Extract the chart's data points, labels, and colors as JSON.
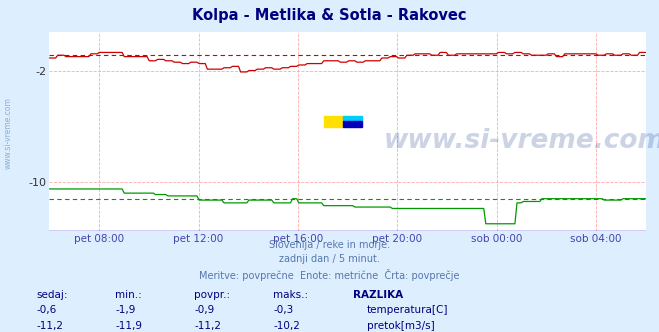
{
  "title": "Kolpa - Metlika & Sotla - Rakovec",
  "title_color": "#000080",
  "bg_color": "#ddeeff",
  "plot_bg_color": "#ffffff",
  "grid_color": "#ffaaaa",
  "grid_style": "--",
  "tick_color": "#4444aa",
  "watermark_text": "www.si-vreme.com",
  "watermark_color": "#1a3a8a",
  "watermark_alpha": 0.22,
  "subtitle_lines": [
    "Slovenija / reke in morje.",
    "zadnji dan / 5 minut.",
    "Meritve: povprečne  Enote: metrične  Črta: povprečje"
  ],
  "subtitle_color": "#5577aa",
  "x_tick_labels": [
    "pet 08:00",
    "pet 12:00",
    "pet 16:00",
    "pet 20:00",
    "sob 00:00",
    "sob 04:00"
  ],
  "ylim": [
    -13.5,
    0.8
  ],
  "y_ticks": [
    -10,
    -2
  ],
  "ytick_labels": [
    "-10",
    "-2"
  ],
  "temp_color": "#cc0000",
  "temp_avg": -0.9,
  "flow_color": "#009900",
  "flow_avg": -11.2,
  "bottom_line_color": "#0000cc",
  "logo_yellow": "#FFE000",
  "logo_cyan": "#00CCFF",
  "logo_blue": "#0000BB",
  "table_headers": [
    "sedaj:",
    "min.:",
    "povpr.:",
    "maks.:",
    "RAZLIKA"
  ],
  "table_temp": [
    "-0,6",
    "-1,9",
    "-0,9",
    "-0,3",
    "temperatura[C]"
  ],
  "table_flow": [
    "-11,2",
    "-11,9",
    "-11,2",
    "-10,2",
    "pretok[m3/s]"
  ],
  "table_color": "#000080",
  "table_header_color": "#000080",
  "sidebar_text": "www.si-vreme.com",
  "sidebar_color": "#7799bb"
}
